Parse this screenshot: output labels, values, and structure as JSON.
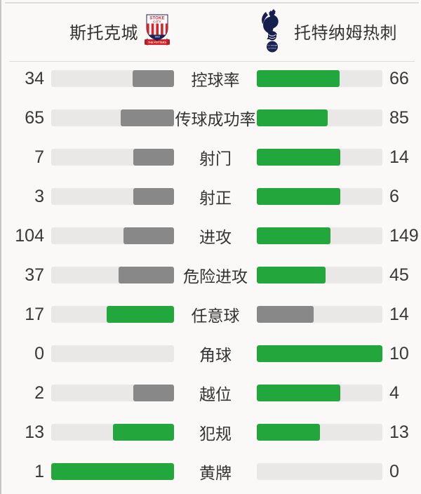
{
  "header": {
    "home_team": "斯托克城",
    "away_team": "托特纳姆热刺",
    "stoke_badge": {
      "top_text": "STOKE",
      "city_text": "CITY",
      "year": "1863",
      "ribbon": "THE POTTERS"
    },
    "spurs_badge": {
      "line1": "TOTTENHAM",
      "line2": "HOTSPUR"
    }
  },
  "colors": {
    "win_fill": "#23a73d",
    "lose_fill": "#888888",
    "bar_track": "#e9e8e6",
    "stoke_red": "#d6242b",
    "navy": "#1b2256",
    "text": "#333333"
  },
  "stats": [
    {
      "label": "控球率",
      "home": 34,
      "away": 66
    },
    {
      "label": "传球成功率",
      "home": 65,
      "away": 85
    },
    {
      "label": "射门",
      "home": 7,
      "away": 14
    },
    {
      "label": "射正",
      "home": 3,
      "away": 6
    },
    {
      "label": "进攻",
      "home": 104,
      "away": 149
    },
    {
      "label": "危险进攻",
      "home": 37,
      "away": 45
    },
    {
      "label": "任意球",
      "home": 17,
      "away": 14
    },
    {
      "label": "角球",
      "home": 0,
      "away": 10
    },
    {
      "label": "越位",
      "home": 2,
      "away": 4
    },
    {
      "label": "犯规",
      "home": 13,
      "away": 13
    },
    {
      "label": "黄牌",
      "home": 1,
      "away": 0
    }
  ],
  "chart_data": {
    "type": "bar",
    "orientation": "horizontal-paired",
    "categories": [
      "控球率",
      "传球成功率",
      "射门",
      "射正",
      "进攻",
      "危险进攻",
      "任意球",
      "角球",
      "越位",
      "犯规",
      "黄牌"
    ],
    "series": [
      {
        "name": "斯托克城",
        "values": [
          34,
          65,
          7,
          3,
          104,
          37,
          17,
          0,
          2,
          13,
          1
        ]
      },
      {
        "name": "托特纳姆热刺",
        "values": [
          66,
          85,
          14,
          6,
          149,
          45,
          14,
          10,
          4,
          13,
          0
        ]
      }
    ],
    "bar_scale": "value / (home + away)",
    "color_rule": "green when value >= opponent, gray when lower, empty when 0"
  }
}
